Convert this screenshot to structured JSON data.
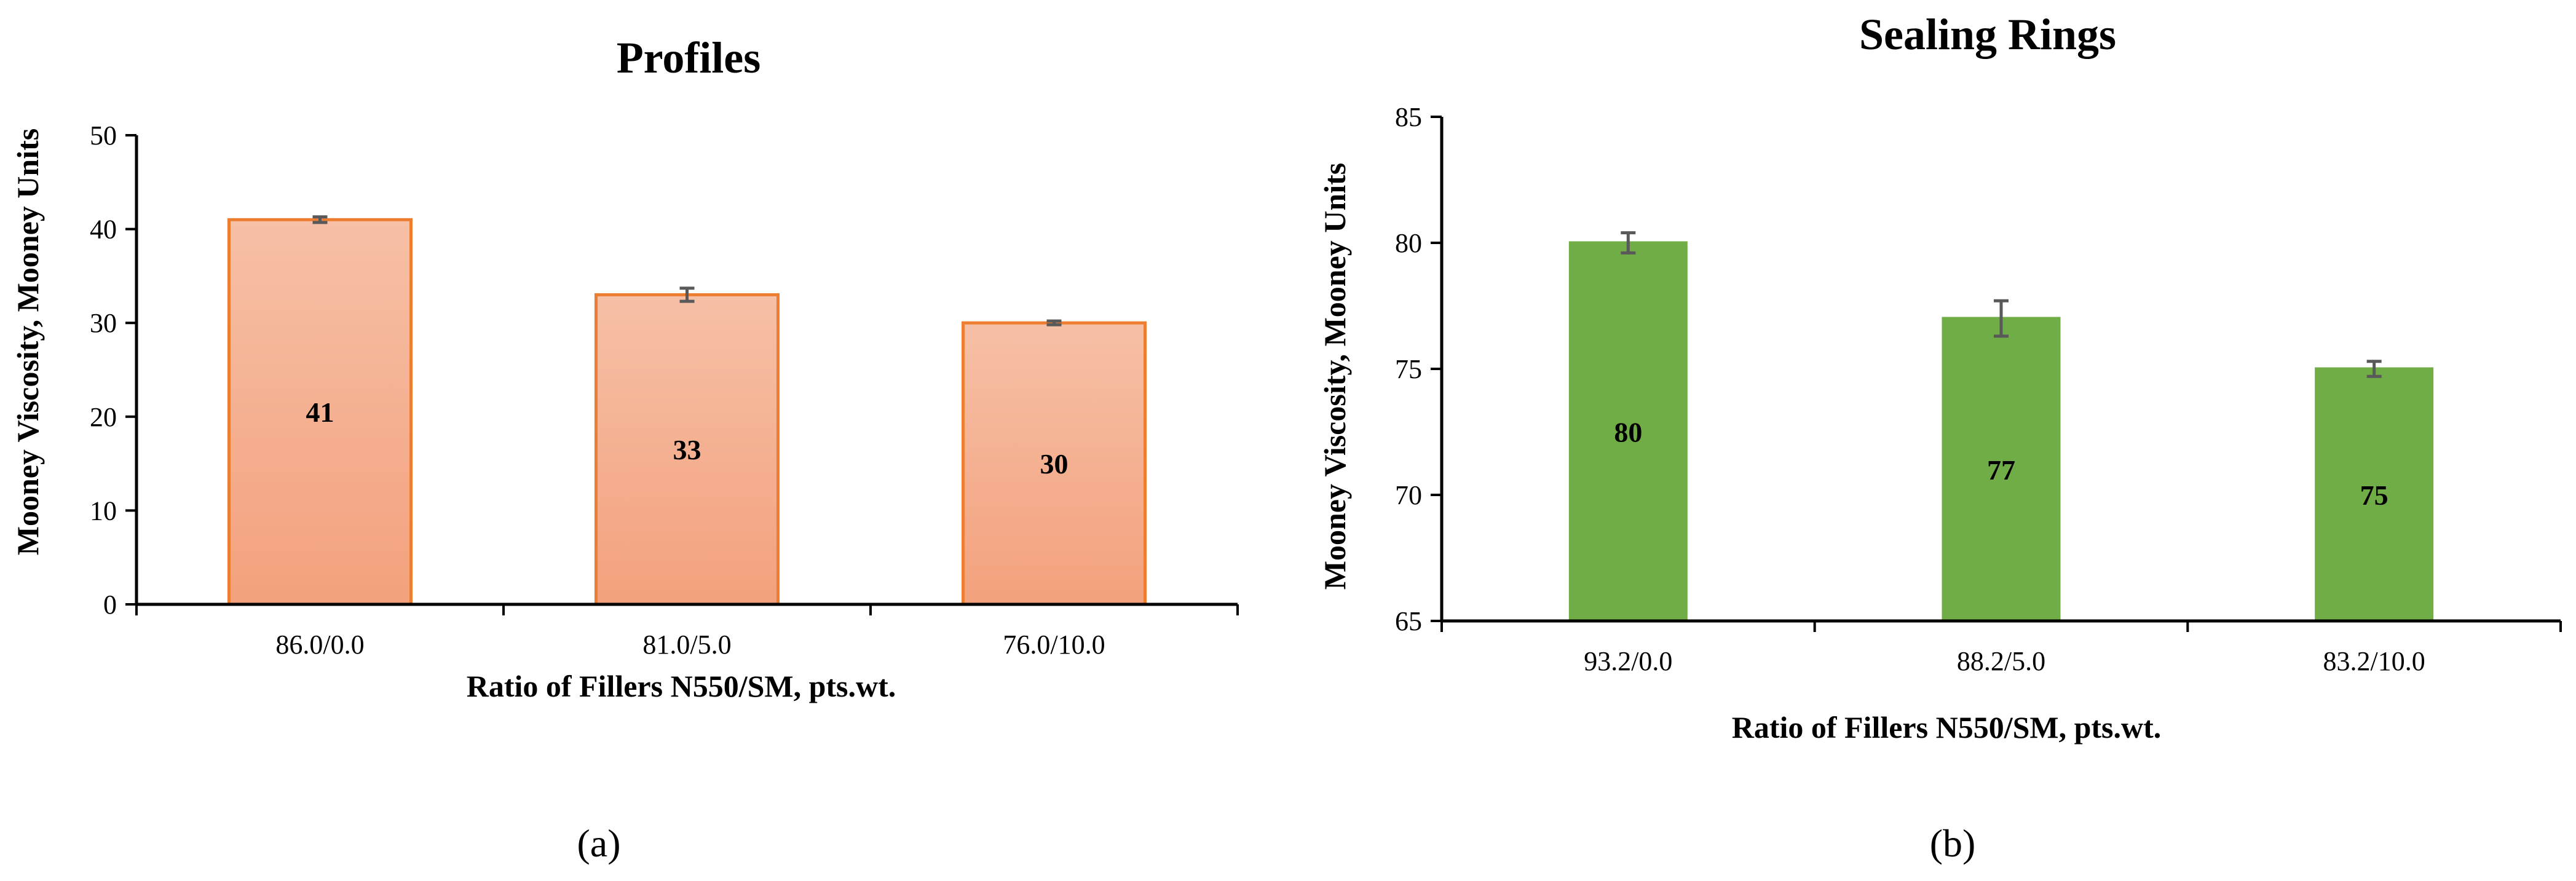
{
  "chart_data": [
    {
      "type": "bar",
      "panel": "(a)",
      "title": "Profiles",
      "xlabel": "Ratio of Fillers N550/SM, pts.wt.",
      "ylabel": "Mooney Viscosity, Mooney Units",
      "categories": [
        "86.0/0.0",
        "81.0/5.0",
        "76.0/10.0"
      ],
      "values": [
        41,
        33,
        30
      ],
      "errors": [
        0.3,
        0.7,
        0.2
      ],
      "data_labels": [
        "41",
        "33",
        "30"
      ],
      "ylim": [
        0,
        50
      ],
      "yticks": [
        0,
        10,
        20,
        30,
        40,
        50
      ],
      "ytick_labels": [
        "0",
        "10",
        "20",
        "30",
        "40",
        "50"
      ],
      "bar_fill_top": "#f6c0a6",
      "bar_fill_bottom": "#f3a17d",
      "bar_stroke": "#ed7d31",
      "grid": false
    },
    {
      "type": "bar",
      "panel": "(b)",
      "title": "Sealing Rings",
      "xlabel": "Ratio of Fillers N550/SM, pts.wt.",
      "ylabel": "Mooney Viscosity, Mooney Units",
      "categories": [
        "93.2/0.0",
        "88.2/5.0",
        "83.2/10.0"
      ],
      "values": [
        80,
        77,
        75
      ],
      "errors": [
        0.4,
        0.7,
        0.3
      ],
      "data_labels": [
        "80",
        "77",
        "75"
      ],
      "ylim": [
        65,
        85
      ],
      "yticks": [
        65,
        70,
        75,
        80,
        85
      ],
      "ytick_labels": [
        "65",
        "70",
        "75",
        "80",
        "85"
      ],
      "bar_fill_top": "#70ad47",
      "bar_fill_bottom": "#70ad47",
      "bar_stroke": "#70ad47",
      "grid": false
    }
  ]
}
